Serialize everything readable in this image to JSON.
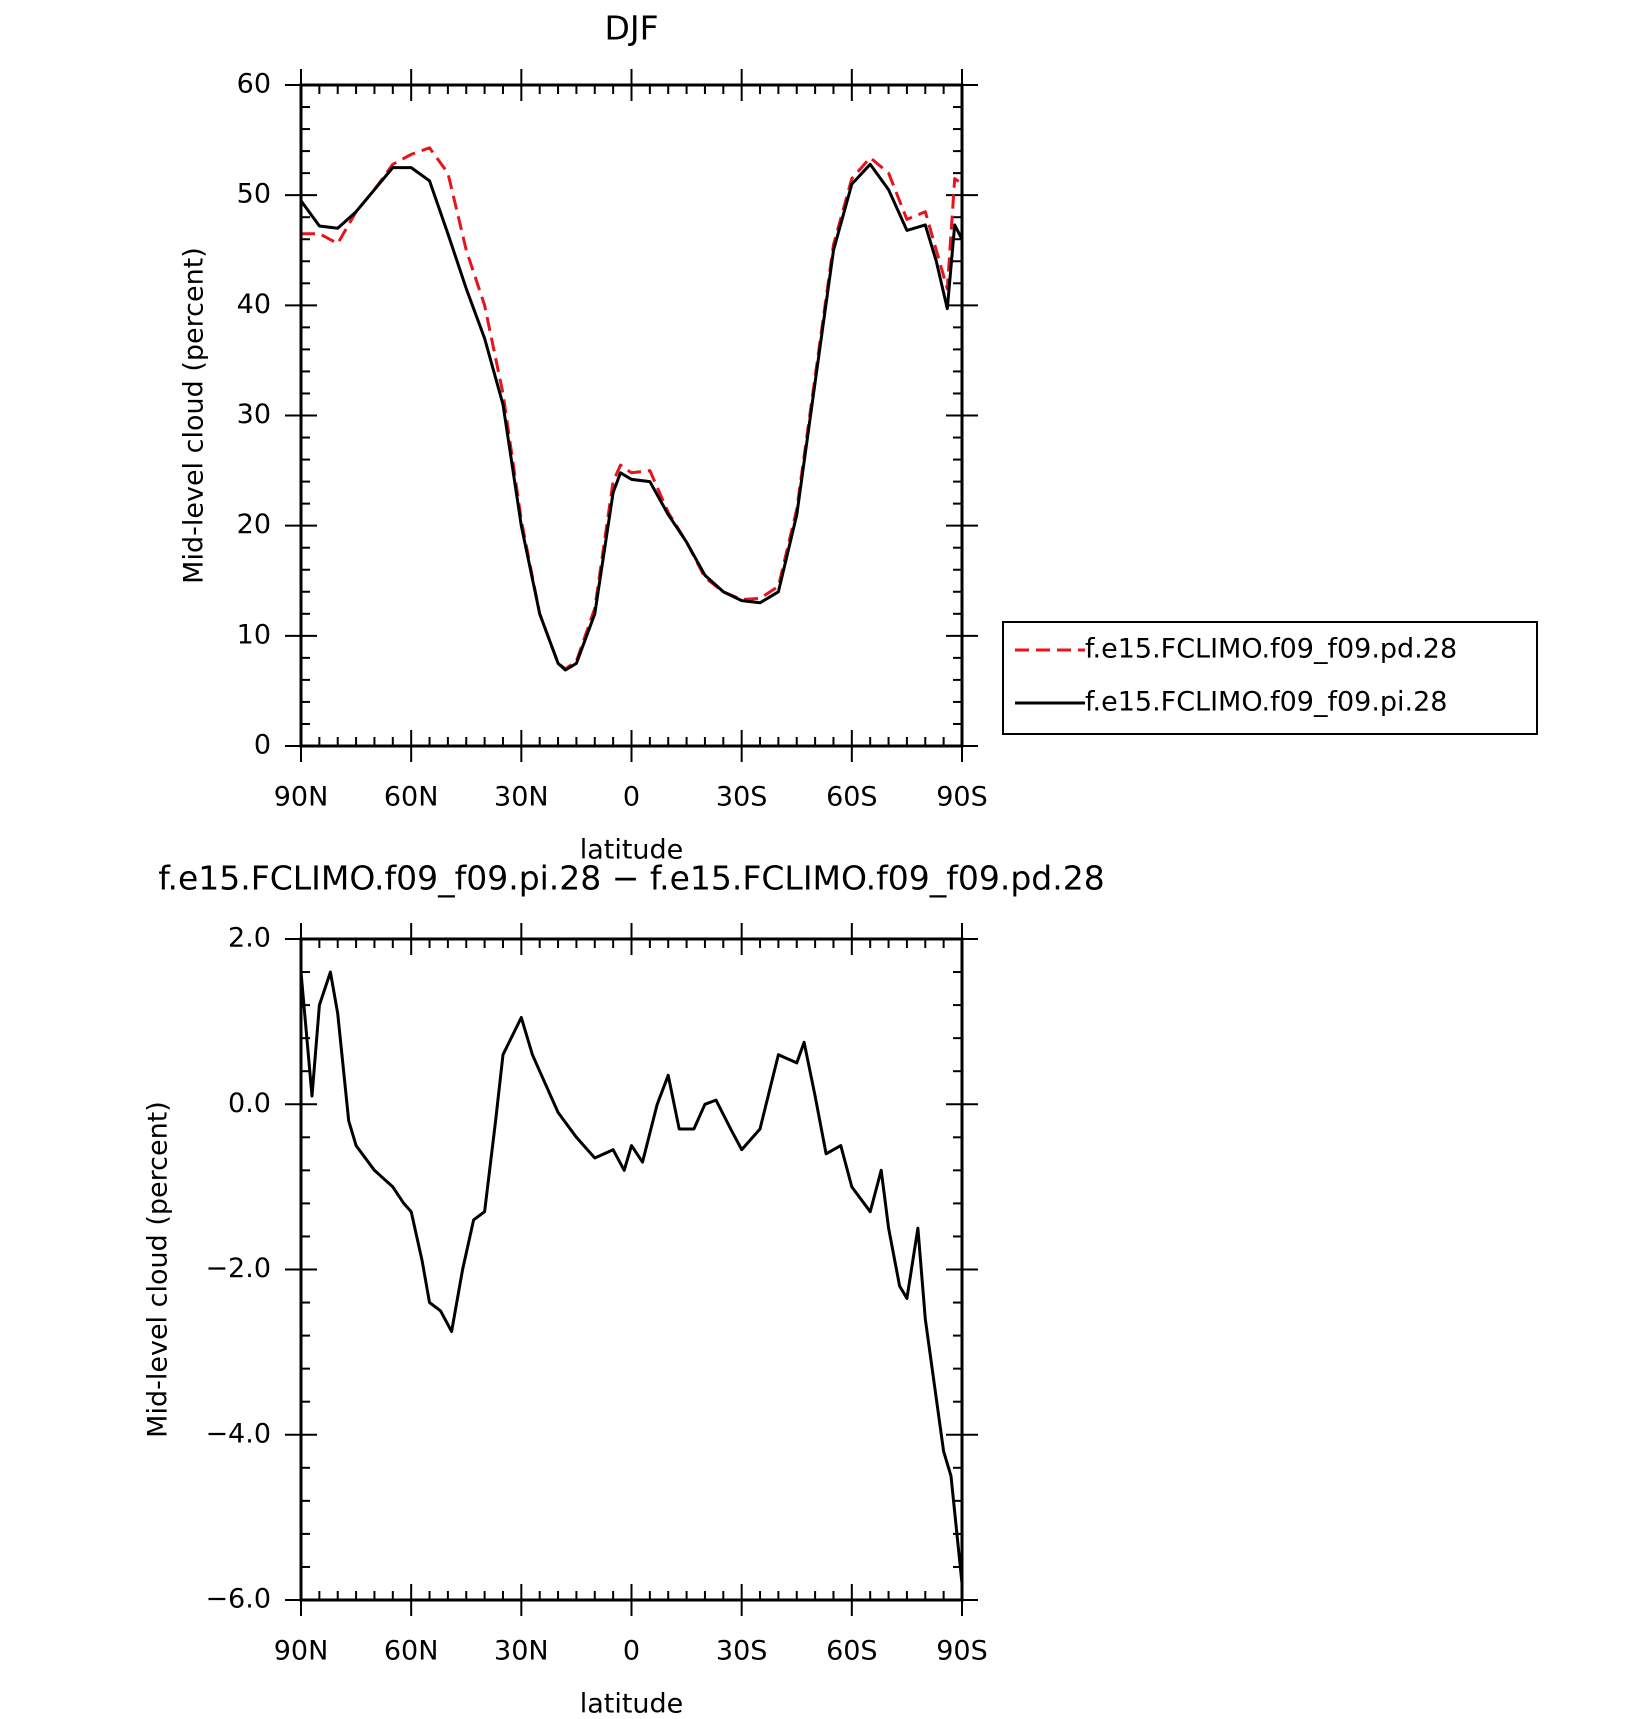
{
  "chart_data": [
    {
      "type": "line",
      "title": "DJF",
      "x_label": "latitude",
      "y_label": "Mid-level cloud (percent)",
      "x": [
        90,
        85,
        80,
        75,
        70,
        65,
        60,
        55,
        50,
        45,
        40,
        35,
        30,
        25,
        20,
        18,
        15,
        10,
        5,
        3,
        0,
        -5,
        -10,
        -15,
        -20,
        -25,
        -30,
        -35,
        -40,
        -45,
        -50,
        -55,
        -60,
        -65,
        -70,
        -75,
        -80,
        -83,
        -86,
        -88,
        -90
      ],
      "series": [
        {
          "name": "f.e15.FCLIMO.f09_f09.pd.28",
          "color": "#e8141b",
          "dash": "dashed",
          "values": [
            46.5,
            46.5,
            45.6,
            48.5,
            50.5,
            52.8,
            53.7,
            54.3,
            52,
            45,
            40,
            32,
            20.5,
            12,
            7.5,
            7,
            7.7,
            12.5,
            24,
            25.5,
            24.8,
            25,
            21.2,
            18.5,
            15.3,
            14,
            13.3,
            13.4,
            14.5,
            21.5,
            33.5,
            45.5,
            51.5,
            53.4,
            52,
            47.8,
            48.5,
            45,
            41.5,
            51.5,
            51
          ]
        },
        {
          "name": "f.e15.FCLIMO.f09_f09.pi.28",
          "color": "#000000",
          "dash": "solid",
          "values": [
            49.5,
            47.2,
            47,
            48.5,
            50.5,
            52.5,
            52.5,
            51.3,
            46.5,
            41.5,
            37,
            31,
            20,
            12,
            7.5,
            6.9,
            7.5,
            12,
            23,
            24.8,
            24.2,
            24,
            21,
            18.5,
            15.5,
            14,
            13.2,
            13,
            14,
            21,
            33,
            45,
            51,
            52.8,
            50.5,
            46.8,
            47.3,
            44,
            39.7,
            47.3,
            46
          ]
        }
      ],
      "xlim": [
        90,
        -90
      ],
      "xticks": [
        {
          "value": 90,
          "label": "90N"
        },
        {
          "value": 60,
          "label": "60N"
        },
        {
          "value": 30,
          "label": "30N"
        },
        0,
        {
          "value": -30,
          "label": "30S"
        },
        {
          "value": -60,
          "label": "60S"
        },
        {
          "value": -90,
          "label": "90S"
        }
      ],
      "ylim": [
        0,
        60
      ],
      "yticks": [
        0,
        10,
        20,
        30,
        40,
        50,
        60
      ],
      "legend": "right"
    },
    {
      "type": "line",
      "title": "f.e15.FCLIMO.f09_f09.pi.28 − f.e15.FCLIMO.f09_f09.pd.28",
      "x_label": "latitude",
      "y_label": "Mid-level cloud (percent)",
      "x": [
        90,
        87,
        85,
        82,
        80,
        77,
        75,
        70,
        65,
        62,
        60,
        57,
        55,
        52,
        49,
        46,
        43,
        40,
        37,
        35,
        30,
        27,
        25,
        20,
        15,
        10,
        5,
        2,
        0,
        -3,
        -7,
        -10,
        -13,
        -17,
        -20,
        -23,
        -27,
        -30,
        -35,
        -40,
        -45,
        -47,
        -50,
        -53,
        -57,
        -60,
        -65,
        -68,
        -70,
        -73,
        -75,
        -78,
        -80,
        -85,
        -87,
        -90
      ],
      "series": [
        {
          "color": "#000000",
          "dash": "solid",
          "values": [
            1.6,
            0.1,
            1.2,
            1.6,
            1.1,
            -0.2,
            -0.5,
            -0.8,
            -1.0,
            -1.2,
            -1.3,
            -1.9,
            -2.4,
            -2.5,
            -2.75,
            -2.0,
            -1.4,
            -1.3,
            -0.2,
            0.6,
            1.05,
            0.6,
            0.4,
            -0.1,
            -0.4,
            -0.65,
            -0.55,
            -0.8,
            -0.5,
            -0.7,
            0.0,
            0.35,
            -0.3,
            -0.3,
            0.0,
            0.05,
            -0.3,
            -0.55,
            -0.3,
            0.6,
            0.5,
            0.75,
            0.1,
            -0.6,
            -0.5,
            -1.0,
            -1.3,
            -0.8,
            -1.5,
            -2.2,
            -2.35,
            -1.5,
            -2.6,
            -4.2,
            -4.5,
            -5.8
          ]
        }
      ],
      "xlim": [
        90,
        -90
      ],
      "xticks": [
        {
          "value": 90,
          "label": "90N"
        },
        {
          "value": 60,
          "label": "60N"
        },
        {
          "value": 30,
          "label": "30N"
        },
        0,
        {
          "value": -30,
          "label": "30S"
        },
        {
          "value": -60,
          "label": "60S"
        },
        {
          "value": -90,
          "label": "90S"
        }
      ],
      "ylim": [
        -6,
        2
      ],
      "yticks": [
        {
          "value": -6,
          "label": "−6.0"
        },
        {
          "value": -4,
          "label": "−4.0"
        },
        {
          "value": -2,
          "label": "−2.0"
        },
        {
          "value": 0,
          "label": "0.0"
        },
        {
          "value": 2,
          "label": "2.0"
        }
      ]
    }
  ]
}
